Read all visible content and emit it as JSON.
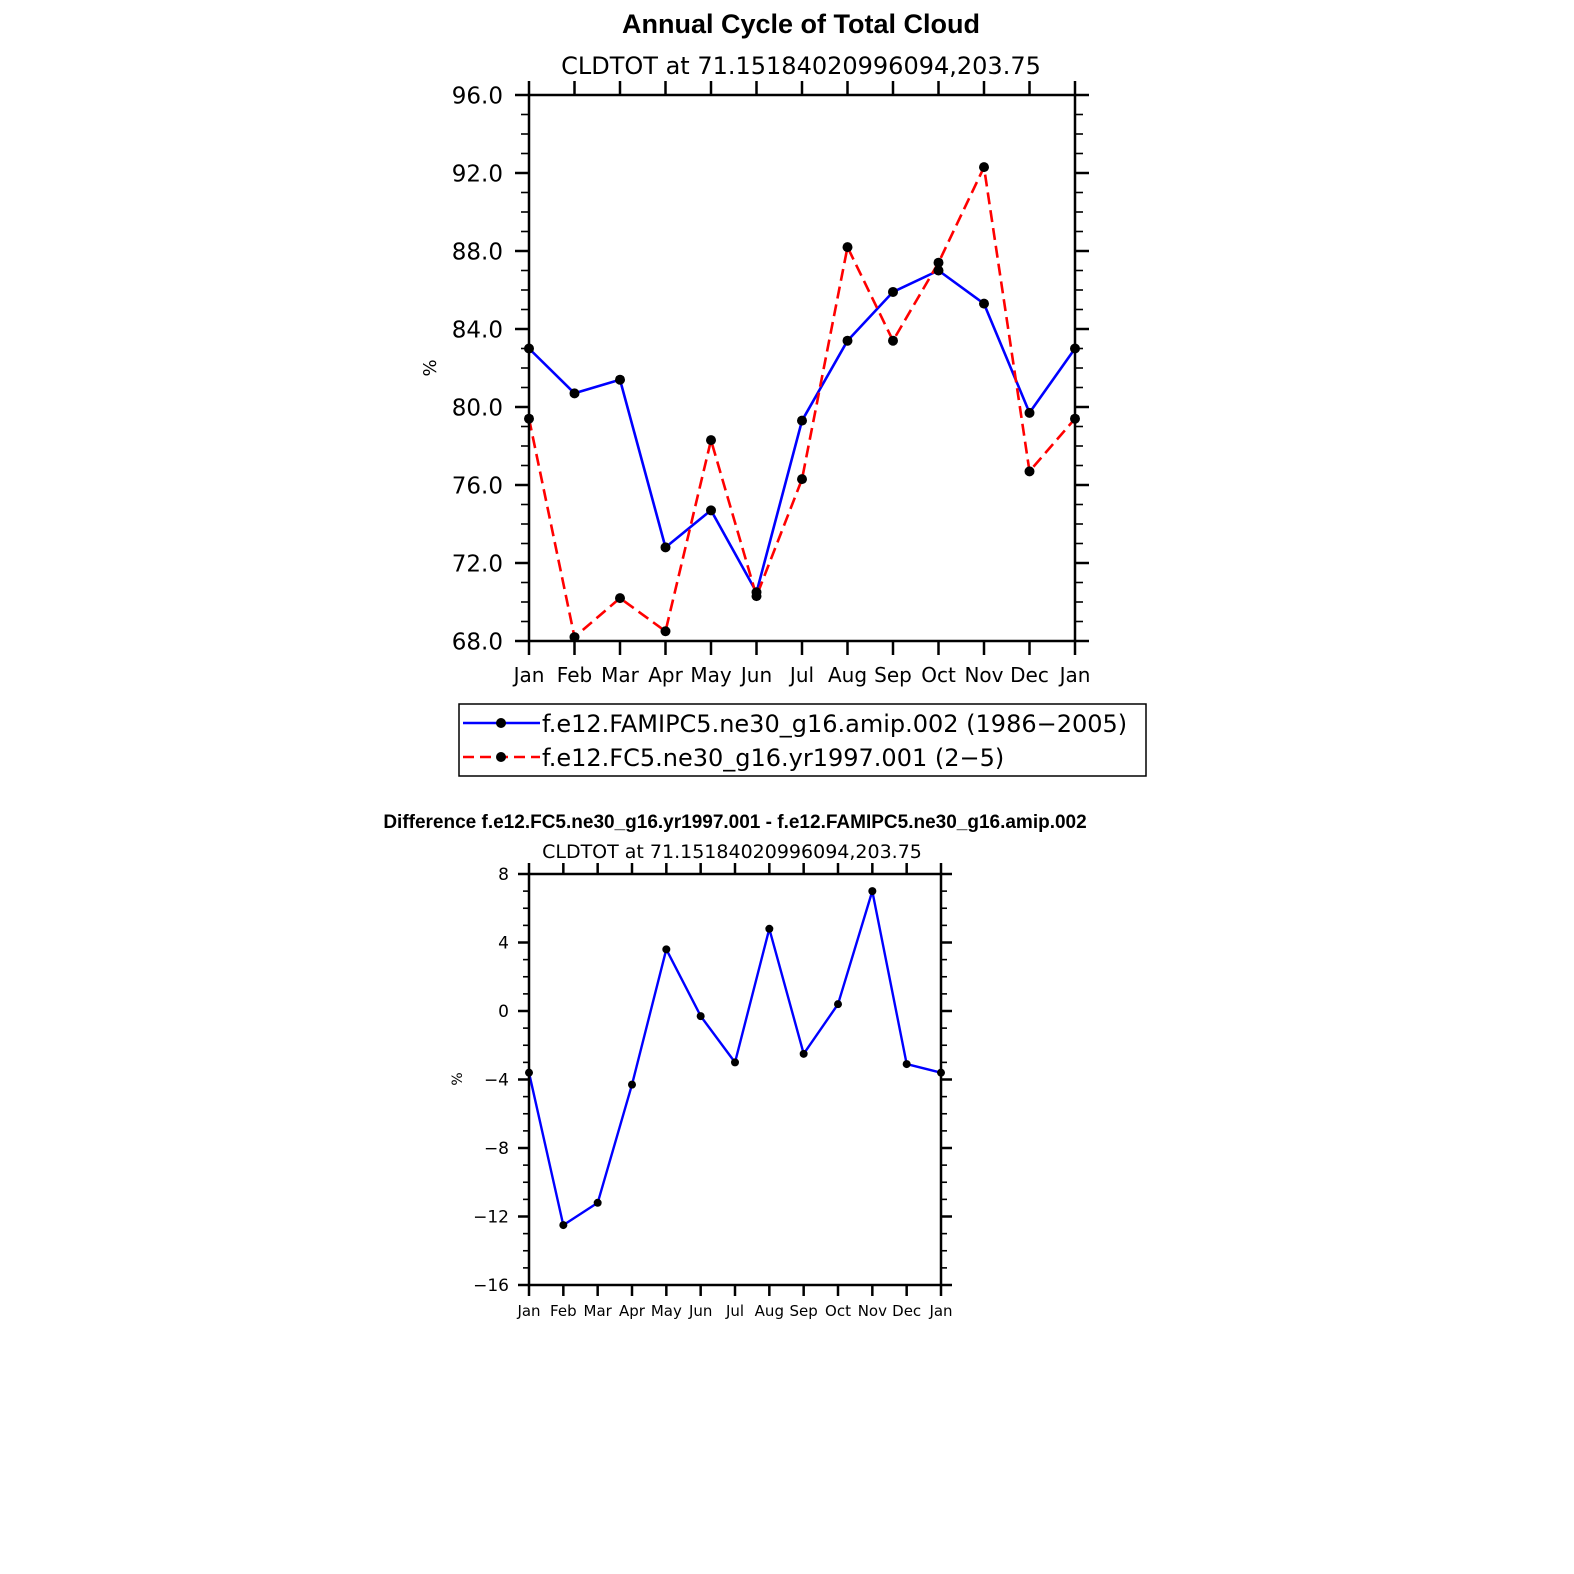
{
  "chart_data": [
    {
      "type": "line",
      "title": "Annual Cycle of Total Cloud",
      "subtitle": "CLDTOT at 71.15184020996094,203.75",
      "ylabel": "%",
      "xlabel": "",
      "ylim": [
        68.0,
        96.0
      ],
      "yticks": [
        "96.0",
        "92.0",
        "88.0",
        "84.0",
        "80.0",
        "76.0",
        "72.0",
        "68.0"
      ],
      "ytick_values": [
        96,
        92,
        88,
        84,
        80,
        76,
        72,
        68
      ],
      "categories": [
        "Jan",
        "Feb",
        "Mar",
        "Apr",
        "May",
        "Jun",
        "Jul",
        "Aug",
        "Sep",
        "Oct",
        "Nov",
        "Dec",
        "Jan"
      ],
      "series": [
        {
          "name": "f.e12.FAMIPC5.ne30_g16.amip.002 (1986−2005)",
          "color": "#0000ff",
          "dash": "solid",
          "values": [
            83.0,
            80.7,
            81.4,
            72.8,
            74.7,
            70.5,
            79.3,
            83.4,
            85.9,
            87.0,
            85.3,
            79.7,
            83.0
          ]
        },
        {
          "name": "f.e12.FC5.ne30_g16.yr1997.001 (2−5)",
          "color": "#ff0000",
          "dash": "dashed",
          "values": [
            79.4,
            68.2,
            70.2,
            68.5,
            78.3,
            70.3,
            76.3,
            88.2,
            83.4,
            87.4,
            92.3,
            76.7,
            79.4
          ]
        }
      ],
      "legend": "bottom"
    },
    {
      "type": "line",
      "title": "Difference f.e12.FC5.ne30_g16.yr1997.001 - f.e12.FAMIPC5.ne30_g16.amip.002",
      "subtitle": "CLDTOT at 71.15184020996094,203.75",
      "ylabel": "%",
      "xlabel": "",
      "ylim": [
        -16,
        8
      ],
      "yticks": [
        "8",
        "4",
        "0",
        "−4",
        "−8",
        "−12",
        "−16"
      ],
      "ytick_values": [
        8,
        4,
        0,
        -4,
        -8,
        -12,
        -16
      ],
      "categories": [
        "Jan",
        "Feb",
        "Mar",
        "Apr",
        "May",
        "Jun",
        "Jul",
        "Aug",
        "Sep",
        "Oct",
        "Nov",
        "Dec",
        "Jan"
      ],
      "series": [
        {
          "name": "difference",
          "color": "#0000ff",
          "dash": "solid",
          "values": [
            -3.6,
            -12.5,
            -11.2,
            -4.3,
            3.6,
            -0.3,
            -3.0,
            4.8,
            -2.5,
            0.4,
            7.0,
            -3.1,
            -3.6
          ]
        }
      ]
    }
  ]
}
